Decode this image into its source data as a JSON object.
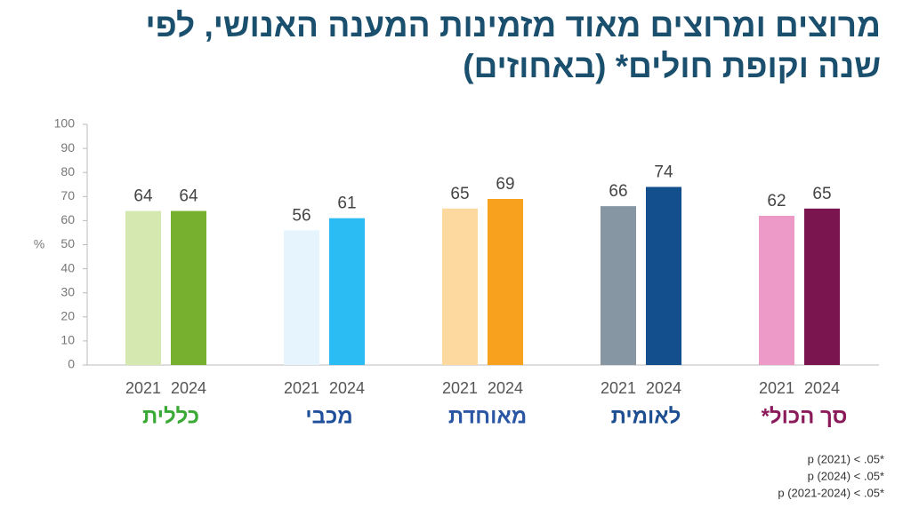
{
  "chart_data": {
    "type": "bar",
    "title": "מרוצים ומרוצים מאוד מזמינות המענה האנושי, לפי\nשנה וקופת חולים* (באחוזים)",
    "y_label": "%",
    "categories": [
      "כללית",
      "מכבי",
      "מאוחדת",
      "לאומית",
      "סך הכול*"
    ],
    "category_colors": [
      "#3aa935",
      "#1f4f9a",
      "#2a56a3",
      "#1d4e8f",
      "#8b1a5a"
    ],
    "series": [
      {
        "name": "2021",
        "values": [
          64,
          56,
          65,
          66,
          62
        ],
        "colors": [
          "#d4e8b0",
          "#e6f5fd",
          "#fdd9a0",
          "#8696a3",
          "#ee9ac8"
        ]
      },
      {
        "name": "2024",
        "values": [
          64,
          61,
          69,
          74,
          65
        ],
        "colors": [
          "#77b02f",
          "#2bbcf4",
          "#f7a11e",
          "#124f8c",
          "#7a1550"
        ]
      }
    ],
    "ylim": [
      0,
      100
    ],
    "yticks": [
      0,
      10,
      20,
      30,
      40,
      50,
      60,
      70,
      80,
      90,
      100
    ],
    "grid": false,
    "footnotes": [
      "p (2021) < .05*",
      "p (2024) < .05*",
      "p (2021-2024) < .05*"
    ]
  }
}
